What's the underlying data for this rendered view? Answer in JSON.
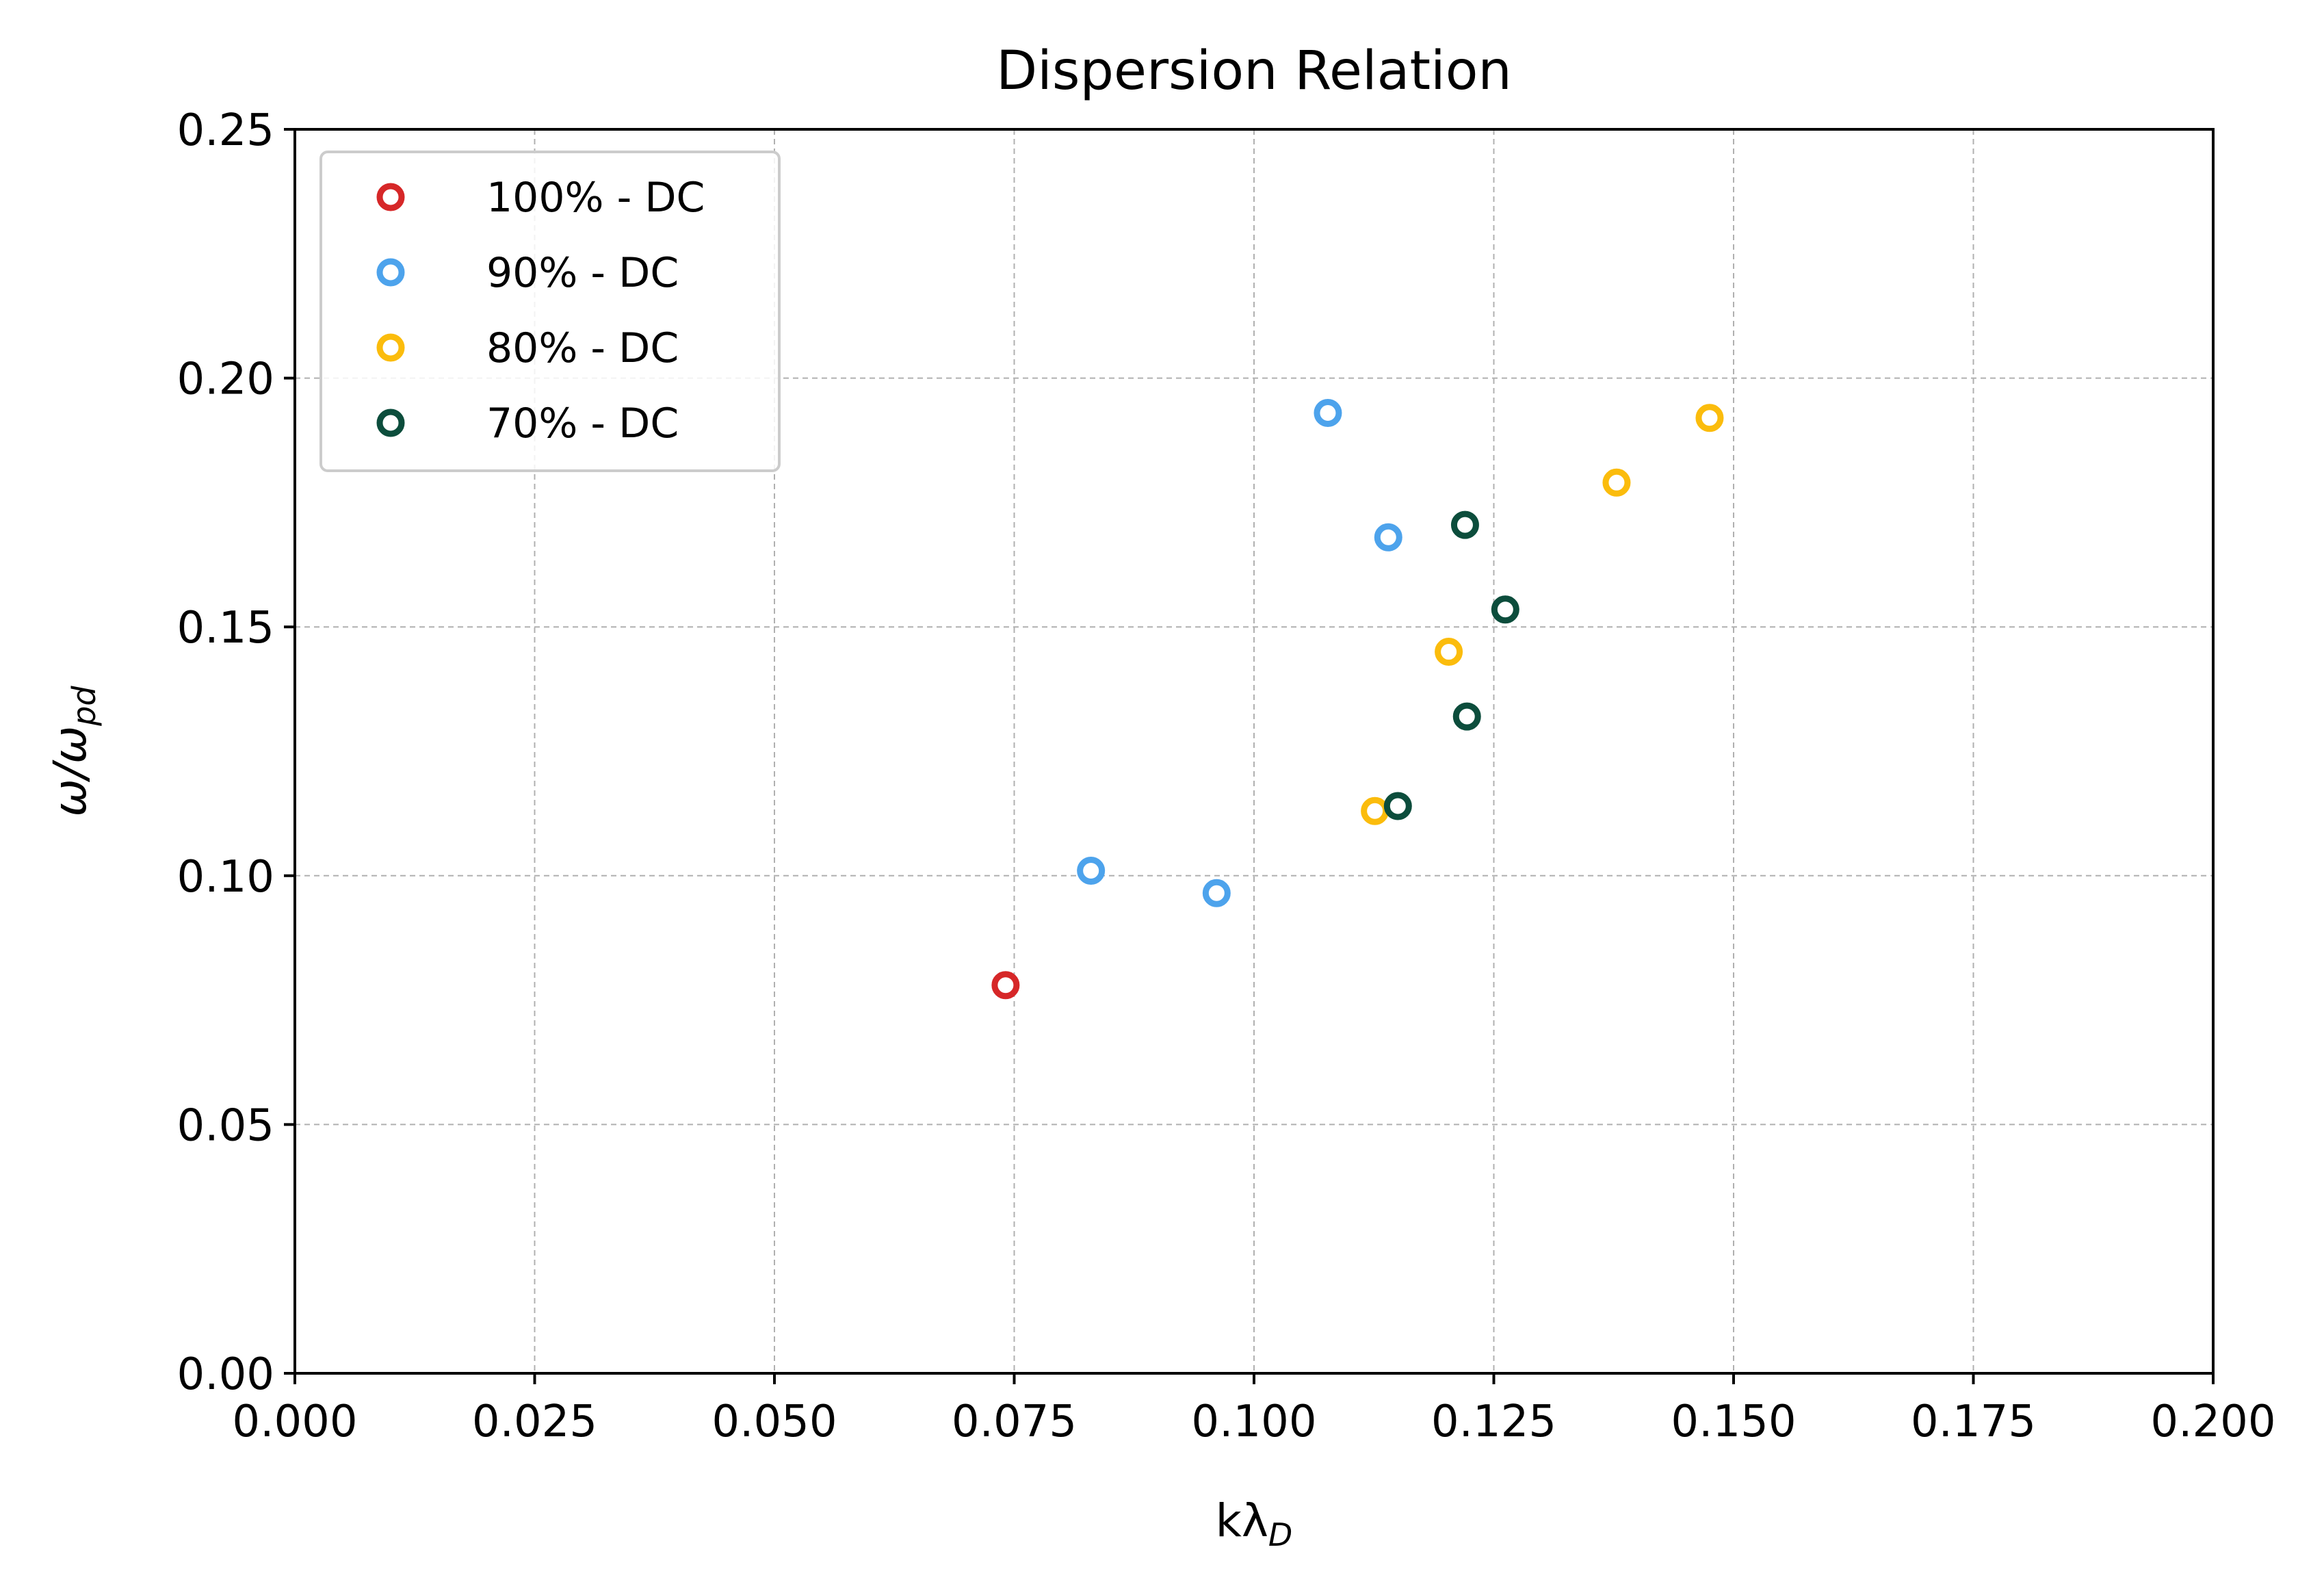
{
  "chart_data": {
    "type": "scatter",
    "title": "Dispersion Relation",
    "xlabel": "kλ",
    "xlabel_sub": "D",
    "ylabel": "ω/ω",
    "ylabel_sub": "pd",
    "xlim": [
      0.0,
      0.2
    ],
    "ylim": [
      0.0,
      0.25
    ],
    "xticks": [
      "0.000",
      "0.025",
      "0.050",
      "0.075",
      "0.100",
      "0.125",
      "0.150",
      "0.175",
      "0.200"
    ],
    "yticks": [
      "0.00",
      "0.05",
      "0.10",
      "0.15",
      "0.20",
      "0.25"
    ],
    "grid": true,
    "legend_position": "upper-left",
    "marker": "hollow-circle",
    "series": [
      {
        "name": "100% - DC",
        "color": "#d62728",
        "points": [
          [
            0.0741,
            0.078
          ]
        ]
      },
      {
        "name": "90% - DC",
        "color": "#4da3ec",
        "points": [
          [
            0.083,
            0.101
          ],
          [
            0.0961,
            0.0965
          ],
          [
            0.1077,
            0.193
          ],
          [
            0.114,
            0.168
          ]
        ]
      },
      {
        "name": "80% - DC",
        "color": "#fbbc0c",
        "points": [
          [
            0.1126,
            0.113
          ],
          [
            0.1203,
            0.145
          ],
          [
            0.1378,
            0.179
          ],
          [
            0.1475,
            0.192
          ]
        ]
      },
      {
        "name": "70% - DC",
        "color": "#0c4d3c",
        "points": [
          [
            0.115,
            0.114
          ],
          [
            0.1222,
            0.132
          ],
          [
            0.122,
            0.1705
          ],
          [
            0.1262,
            0.1535
          ]
        ]
      }
    ]
  }
}
